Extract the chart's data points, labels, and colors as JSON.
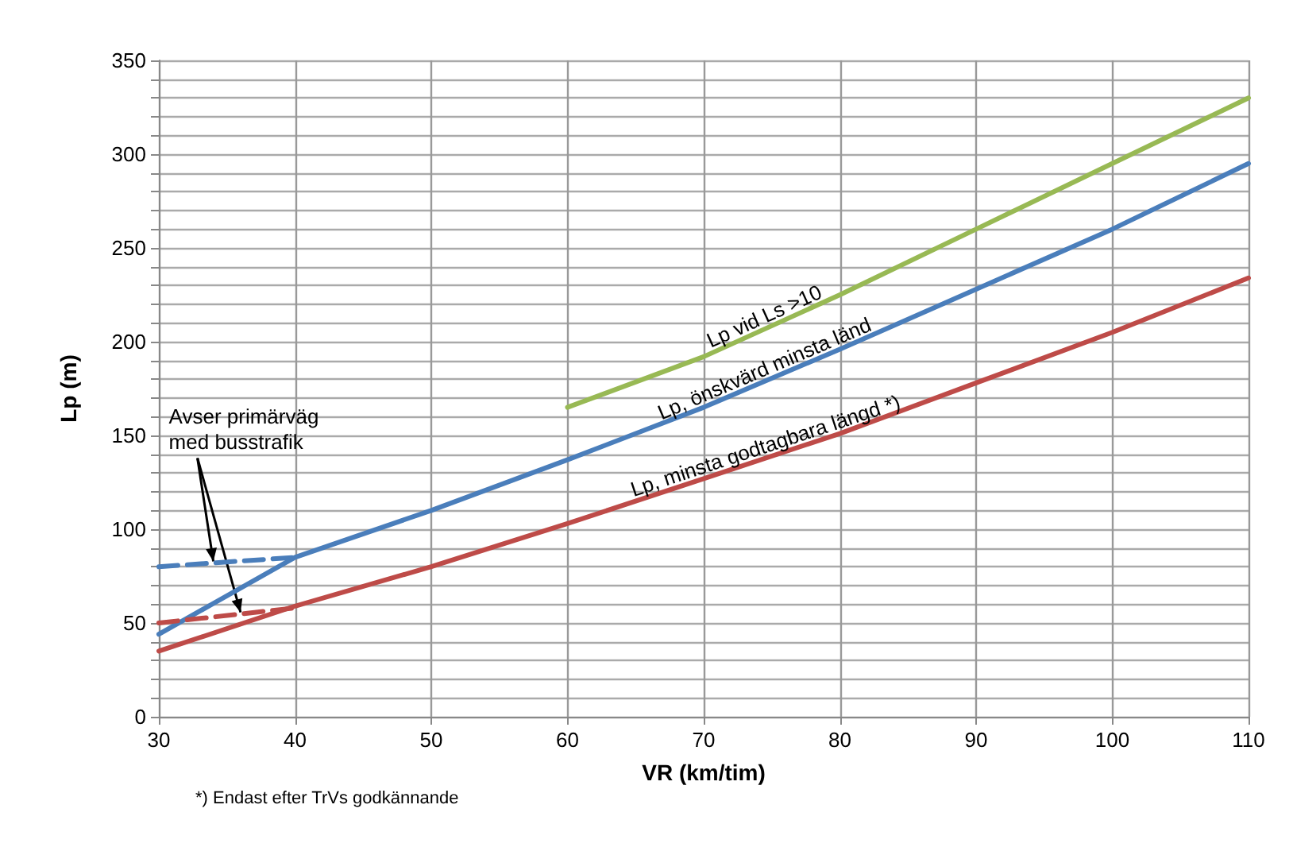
{
  "chart_data": {
    "type": "line",
    "xlabel": "VR (km/tim)",
    "ylabel": "Lp (m)",
    "xlim": [
      30,
      110
    ],
    "xticks": [
      30,
      40,
      50,
      60,
      70,
      80,
      90,
      100,
      110
    ],
    "ylim": [
      0,
      350
    ],
    "yticks": [
      0,
      {
        "value": 10,
        "label": null
      },
      {
        "value": 20,
        "label": null
      },
      {
        "value": 30,
        "label": null
      },
      {
        "value": 40,
        "label": null
      },
      50,
      {
        "value": 60,
        "label": null
      },
      {
        "value": 70,
        "label": null
      },
      {
        "value": 80,
        "label": null
      },
      {
        "value": 90,
        "label": null
      },
      100,
      {
        "value": 110,
        "label": null
      },
      {
        "value": 120,
        "label": null
      },
      {
        "value": 130,
        "label": null
      },
      {
        "value": 140,
        "label": null
      },
      150,
      {
        "value": 160,
        "label": null
      },
      {
        "value": 170,
        "label": null
      },
      {
        "value": 180,
        "label": null
      },
      {
        "value": 190,
        "label": null
      },
      200,
      {
        "value": 210,
        "label": null
      },
      {
        "value": 220,
        "label": null
      },
      {
        "value": 230,
        "label": null
      },
      {
        "value": 240,
        "label": null
      },
      250,
      {
        "value": 260,
        "label": null
      },
      {
        "value": 270,
        "label": null
      },
      {
        "value": 280,
        "label": null
      },
      {
        "value": 290,
        "label": null
      },
      300,
      {
        "value": 310,
        "label": null
      },
      {
        "value": 320,
        "label": null
      },
      {
        "value": 330,
        "label": null
      },
      {
        "value": 340,
        "label": null
      },
      350
    ],
    "grid": true,
    "legend": false,
    "marker": "none",
    "line_style": "solid",
    "series": [
      {
        "name": "Lp vid Ls >10",
        "color": "#98b954",
        "x": [
          60,
          70,
          80,
          90,
          100,
          110
        ],
        "values": [
          165,
          192,
          225,
          260,
          295,
          330
        ]
      },
      {
        "name": "Lp, önskvärd minsta länd",
        "color": "#4a7ebb",
        "x": [
          30,
          40,
          50,
          60,
          70,
          80,
          90,
          100,
          110
        ],
        "values": [
          44,
          85,
          110,
          137,
          165,
          196,
          228,
          260,
          295
        ]
      },
      {
        "name": "Lp, minsta godtagbara längd *)",
        "color": "#be4b48",
        "x": [
          30,
          40,
          50,
          60,
          70,
          80,
          90,
          100,
          110
        ],
        "values": [
          35,
          59,
          80,
          103,
          127,
          151,
          178,
          205,
          234
        ]
      },
      {
        "color": "#4a7ebb",
        "line_style": "dashed",
        "x": [
          30,
          40
        ],
        "values": [
          80,
          85
        ]
      },
      {
        "color": "#be4b48",
        "line_style": "dashed",
        "x": [
          30,
          40
        ],
        "values": [
          50,
          58
        ]
      }
    ],
    "annotations": [
      {
        "text": "Avser primärväg med busstrafik",
        "x": 34,
        "y": 82
      },
      "*) Endast efter TrVs godkännande"
    ]
  }
}
